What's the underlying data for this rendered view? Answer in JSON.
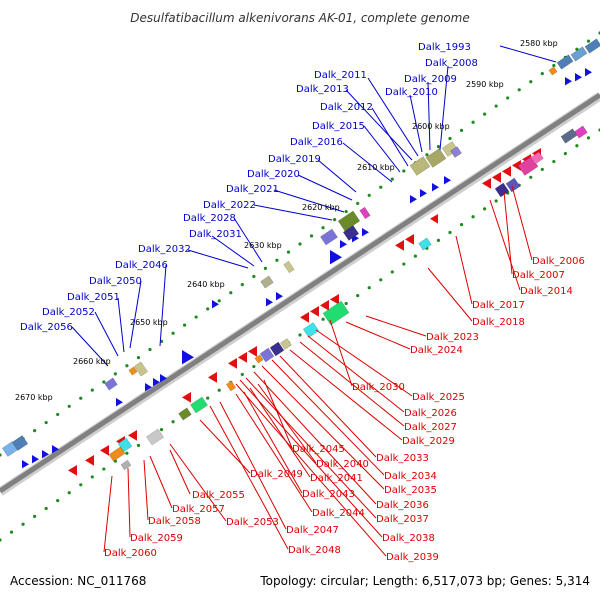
{
  "title": "Desulfatibacillum alkenivorans AK-01, complete genome",
  "footer": {
    "accession": "Accession: NC_011768",
    "summary": "Topology: circular; Length: 6,517,073 bp; Genes: 5,314"
  },
  "colors": {
    "background": "#ffffff",
    "backbone": "#808080",
    "scale_dots": "#1f8a1f",
    "forward_label": "#0000cc",
    "reverse_label": "#dd0000",
    "forward_arrow": "#1010e0",
    "reverse_arrow": "#e01010"
  },
  "scale_labels": [
    "2580 kbp",
    "2590 kbp",
    "2600 kbp",
    "2610 kbp",
    "2620 kbp",
    "2630 kbp",
    "2640 kbp",
    "2650 kbp",
    "2660 kbp",
    "2670 kbp"
  ],
  "forward_genes": [
    "Dalk_1993",
    "Dalk_2008",
    "Dalk_2009",
    "Dalk_2010",
    "Dalk_2011",
    "Dalk_2013",
    "Dalk_2012",
    "Dalk_2015",
    "Dalk_2016",
    "Dalk_2019",
    "Dalk_2020",
    "Dalk_2021",
    "Dalk_2022",
    "Dalk_2028",
    "Dalk_2031",
    "Dalk_2032",
    "Dalk_2046",
    "Dalk_2050",
    "Dalk_2051",
    "Dalk_2052",
    "Dalk_2056"
  ],
  "reverse_genes": [
    "Dalk_2006",
    "Dalk_2007",
    "Dalk_2014",
    "Dalk_2017",
    "Dalk_2018",
    "Dalk_2023",
    "Dalk_2024",
    "Dalk_2030",
    "Dalk_2025",
    "Dalk_2026",
    "Dalk_2027",
    "Dalk_2029",
    "Dalk_2033",
    "Dalk_2034",
    "Dalk_2035",
    "Dalk_2036",
    "Dalk_2037",
    "Dalk_2038",
    "Dalk_2039",
    "Dalk_2045",
    "Dalk_2040",
    "Dalk_2041",
    "Dalk_2043",
    "Dalk_2044",
    "Dalk_2049",
    "Dalk_2047",
    "Dalk_2048",
    "Dalk_2055",
    "Dalk_2057",
    "Dalk_2053",
    "Dalk_2058",
    "Dalk_2059",
    "Dalk_2060"
  ]
}
